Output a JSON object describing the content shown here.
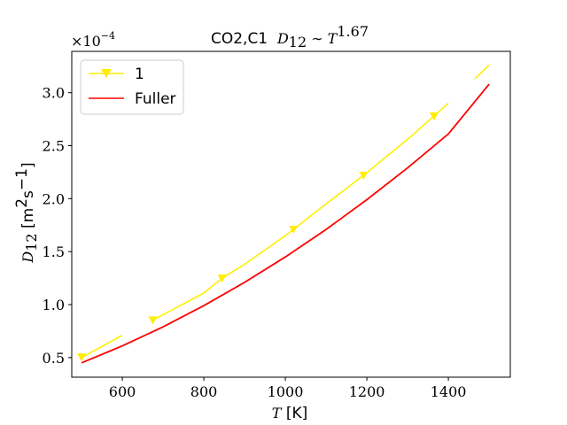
{
  "chart_data": {
    "type": "line",
    "title_prefix": "CO2,C1",
    "title_math_base": "D",
    "title_math_sub": "12",
    "title_math_rel": " ∼ ",
    "title_math_var": "T",
    "title_math_exp": "1.67",
    "xlabel_var": "T",
    "xlabel_unit": " [K]",
    "ylabel_var": "D",
    "ylabel_sub": "12",
    "ylabel_unit_a": " [m",
    "ylabel_unit_sup": "2",
    "ylabel_unit_b": "s",
    "ylabel_unit_sup2": "−1",
    "ylabel_unit_c": "]",
    "offset_base": "×10",
    "offset_exp": "−4",
    "xlim": [
      476,
      1552
    ],
    "ylim": [
      0.315,
      3.39
    ],
    "xticks": [
      600,
      800,
      1000,
      1200,
      1400
    ],
    "yticks": [
      0.5,
      1.0,
      1.5,
      2.0,
      2.5,
      3.0
    ],
    "ytick_labels": [
      "0.5",
      "1.0",
      "1.5",
      "2.0",
      "2.5",
      "3.0"
    ],
    "grid": false,
    "legend_position": "top-left",
    "series": [
      {
        "name": "1",
        "color": "#ffee00",
        "marker": "triangle-down",
        "segments": [
          [
            [
              500,
              0.5
            ],
            [
              600,
              0.71
            ]
          ],
          [
            [
              675,
              0.855
            ],
            [
              700,
              0.905
            ],
            [
              800,
              1.11
            ],
            [
              845,
              1.25
            ],
            [
              900,
              1.38
            ],
            [
              1000,
              1.65
            ],
            [
              1020,
              1.71
            ],
            [
              1100,
              1.95
            ],
            [
              1192,
              2.22
            ],
            [
              1300,
              2.56
            ],
            [
              1365,
              2.78
            ],
            [
              1400,
              2.9
            ]
          ],
          [
            [
              1465,
              3.13
            ],
            [
              1500,
              3.26
            ]
          ]
        ],
        "marker_points": [
          [
            500,
            0.505
          ],
          [
            675,
            0.855
          ],
          [
            845,
            1.25
          ],
          [
            1020,
            1.71
          ],
          [
            1192,
            2.22
          ],
          [
            1365,
            2.78
          ]
        ]
      },
      {
        "name": "Fuller",
        "color": "#ff0000",
        "marker": "none",
        "points": [
          [
            500,
            0.45
          ],
          [
            600,
            0.61
          ],
          [
            700,
            0.79
          ],
          [
            800,
            0.99
          ],
          [
            900,
            1.21
          ],
          [
            1000,
            1.45
          ],
          [
            1100,
            1.71
          ],
          [
            1200,
            1.99
          ],
          [
            1300,
            2.29
          ],
          [
            1400,
            2.61
          ],
          [
            1500,
            3.08
          ]
        ]
      }
    ]
  }
}
